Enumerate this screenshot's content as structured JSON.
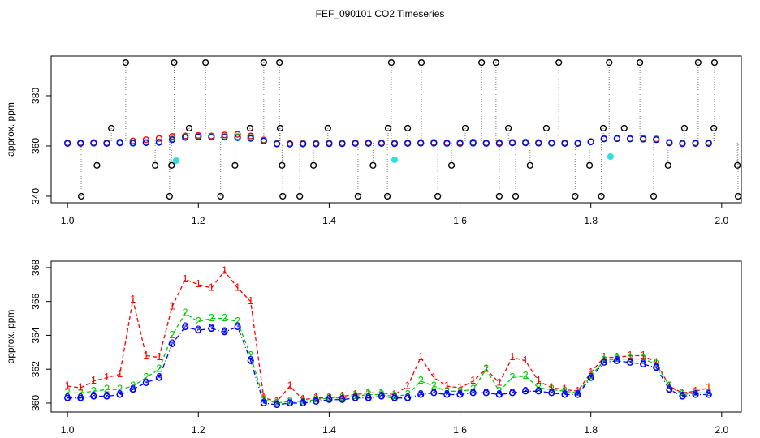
{
  "title": "FEF_090101  CO2 Timeseries",
  "chart_data": [
    {
      "type": "scatter",
      "ylabel": "approx. ppm",
      "xlim": [
        0.975,
        2.03
      ],
      "ylim": [
        337.4,
        395.8
      ],
      "xticks": [
        {
          "value": 1.0,
          "label": "1.0"
        },
        {
          "value": 1.2,
          "label": "1.2"
        },
        {
          "value": 1.4,
          "label": "1.4"
        },
        {
          "value": 1.6,
          "label": "1.6"
        },
        {
          "value": 1.8,
          "label": "1.8"
        },
        {
          "value": 2.0,
          "label": "2.0"
        }
      ],
      "yticks": [
        340,
        360,
        380
      ],
      "x": [
        1.0,
        1.02,
        1.04,
        1.06,
        1.08,
        1.1,
        1.12,
        1.14,
        1.16,
        1.18,
        1.2,
        1.22,
        1.24,
        1.26,
        1.28,
        1.3,
        1.32,
        1.34,
        1.36,
        1.38,
        1.4,
        1.42,
        1.44,
        1.46,
        1.48,
        1.5,
        1.52,
        1.54,
        1.56,
        1.58,
        1.6,
        1.62,
        1.64,
        1.66,
        1.68,
        1.7,
        1.72,
        1.74,
        1.76,
        1.78,
        1.8,
        1.82,
        1.84,
        1.86,
        1.88,
        1.9,
        1.92,
        1.94,
        1.96,
        1.98
      ],
      "series": [
        {
          "color": "#000000",
          "drop_lines": true,
          "x": [
            1.021,
            1.045,
            1.067,
            1.089,
            1.134,
            1.156,
            1.159,
            1.163,
            1.186,
            1.211,
            1.234,
            1.256,
            1.279,
            1.3,
            1.324,
            1.325,
            1.328,
            1.329,
            1.355,
            1.376,
            1.398,
            1.444,
            1.467,
            1.489,
            1.49,
            1.495,
            1.52,
            1.541,
            1.566,
            1.587,
            1.608,
            1.633,
            1.655,
            1.66,
            1.674,
            1.685,
            1.707,
            1.732,
            1.751,
            1.776,
            1.798,
            1.816,
            1.819,
            1.828,
            1.851,
            1.875,
            1.896,
            1.918,
            1.943,
            1.964,
            1.988,
            1.989,
            2.024,
            2.025
          ],
          "values": [
            340,
            352.3,
            367.1,
            393.2,
            352.3,
            340,
            352.3,
            393.2,
            367.1,
            393.2,
            340,
            352.3,
            367.1,
            393.2,
            393.2,
            367.1,
            352.3,
            340,
            340,
            352.3,
            367.1,
            340,
            352.3,
            340,
            367.1,
            393.2,
            367.1,
            393.2,
            340,
            352.3,
            367.1,
            393.2,
            393.2,
            340,
            367.1,
            340,
            352.3,
            367.1,
            393.2,
            340,
            352.3,
            340,
            367.1,
            393.2,
            367.1,
            393.2,
            340,
            352.3,
            367.1,
            393.2,
            367.1,
            393.2,
            352.3,
            340
          ]
        },
        {
          "color": "#ff0000",
          "values": [
            361.3,
            361.3,
            361.4,
            361.3,
            361.6,
            362.0,
            362.5,
            363.0,
            363.8,
            364.0,
            364.2,
            364.0,
            364.4,
            364.6,
            364.0,
            362.4,
            361.0,
            361.0,
            361.1,
            361.1,
            361.2,
            361.2,
            361.3,
            361.3,
            361.3,
            361.2,
            361.3,
            361.4,
            361.5,
            361.3,
            361.4,
            361.6,
            361.3,
            361.4,
            361.5,
            361.6,
            361.4,
            361.3,
            361.3,
            361.2,
            361.8,
            363.0,
            363.1,
            363.0,
            363.0,
            362.8,
            361.5,
            361.2,
            361.3,
            361.3
          ]
        },
        {
          "color": "#00cc00",
          "values": [
            361.1,
            361.1,
            361.2,
            361.1,
            361.3,
            361.3,
            361.5,
            361.6,
            362.8,
            363.6,
            363.8,
            363.7,
            363.8,
            363.7,
            363.4,
            362.2,
            360.9,
            360.8,
            360.9,
            360.9,
            361.0,
            361.0,
            361.1,
            361.1,
            361.1,
            361.0,
            361.1,
            361.2,
            361.2,
            361.1,
            361.1,
            361.3,
            361.1,
            361.1,
            361.3,
            361.3,
            361.2,
            361.2,
            361.1,
            361.1,
            361.7,
            362.9,
            363.0,
            362.9,
            362.8,
            362.6,
            361.3,
            361.0,
            361.1,
            361.1
          ]
        },
        {
          "color": "#0000ff",
          "values": [
            361.0,
            361.0,
            361.1,
            361.0,
            361.2,
            361.1,
            361.3,
            361.4,
            362.5,
            363.4,
            363.6,
            363.5,
            363.5,
            363.3,
            363.0,
            362.0,
            360.8,
            360.7,
            360.8,
            360.8,
            360.9,
            360.9,
            361.0,
            361.0,
            361.0,
            360.9,
            361.0,
            361.1,
            361.1,
            361.0,
            361.0,
            361.1,
            361.0,
            361.0,
            361.2,
            361.2,
            361.1,
            361.1,
            361.0,
            361.0,
            361.6,
            362.8,
            362.9,
            362.8,
            362.7,
            362.5,
            361.2,
            360.9,
            361.0,
            361.0
          ]
        },
        {
          "color": "#33dddd",
          "filled": true,
          "x": [
            1.166,
            1.5,
            1.83
          ],
          "values": [
            354.2,
            354.5,
            355.8
          ]
        }
      ]
    },
    {
      "type": "line",
      "ylabel": "approx. ppm",
      "xlim": [
        0.975,
        2.03
      ],
      "ylim": [
        359.47,
        368.38
      ],
      "xticks": [
        {
          "value": 1.0,
          "label": "1.0"
        },
        {
          "value": 1.2,
          "label": "1.2"
        },
        {
          "value": 1.4,
          "label": "1.4"
        },
        {
          "value": 1.6,
          "label": "1.6"
        },
        {
          "value": 1.8,
          "label": "1.8"
        },
        {
          "value": 2.0,
          "label": "2.0"
        }
      ],
      "yticks": [
        360,
        362,
        364,
        366,
        368
      ],
      "x": [
        1.0,
        1.02,
        1.04,
        1.06,
        1.08,
        1.1,
        1.12,
        1.14,
        1.16,
        1.18,
        1.2,
        1.22,
        1.24,
        1.26,
        1.28,
        1.3,
        1.32,
        1.34,
        1.36,
        1.38,
        1.4,
        1.42,
        1.44,
        1.46,
        1.48,
        1.5,
        1.52,
        1.54,
        1.56,
        1.58,
        1.6,
        1.62,
        1.64,
        1.66,
        1.68,
        1.7,
        1.72,
        1.74,
        1.76,
        1.78,
        1.8,
        1.82,
        1.84,
        1.86,
        1.88,
        1.9,
        1.92,
        1.94,
        1.96,
        1.98
      ],
      "series": [
        {
          "name": "1",
          "color": "#ff0000",
          "linestyle": "dashed",
          "values": [
            361.0,
            360.9,
            361.3,
            361.5,
            361.7,
            366.1,
            362.8,
            362.7,
            365.7,
            367.3,
            367.0,
            366.8,
            367.8,
            366.8,
            366.0,
            360.3,
            360.1,
            361.0,
            360.2,
            360.3,
            360.3,
            360.4,
            360.5,
            360.6,
            360.6,
            360.5,
            361.0,
            362.7,
            361.5,
            361.0,
            360.9,
            361.3,
            362.0,
            361.2,
            362.7,
            362.5,
            361.3,
            360.9,
            360.8,
            360.7,
            361.8,
            362.7,
            362.7,
            362.8,
            362.8,
            362.4,
            361.0,
            360.6,
            360.7,
            360.9
          ]
        },
        {
          "name": "2",
          "color": "#00cc00",
          "linestyle": "dashed",
          "values": [
            360.6,
            360.6,
            360.7,
            360.8,
            360.8,
            361.0,
            361.5,
            362.0,
            364.0,
            365.3,
            364.8,
            365.0,
            365.0,
            364.8,
            362.8,
            360.2,
            360.0,
            360.1,
            360.1,
            360.2,
            360.3,
            360.3,
            360.4,
            360.5,
            360.5,
            360.4,
            360.5,
            361.3,
            361.0,
            360.7,
            360.7,
            360.8,
            362.0,
            360.7,
            361.5,
            361.6,
            360.9,
            360.8,
            360.7,
            360.6,
            361.6,
            362.5,
            362.6,
            362.6,
            362.6,
            362.3,
            361.0,
            360.5,
            360.6,
            360.6
          ]
        },
        {
          "name": "3",
          "color": "#0000ff",
          "linestyle": "dashdot",
          "circles": true,
          "values": [
            360.3,
            360.3,
            360.4,
            360.4,
            360.5,
            360.8,
            361.2,
            361.5,
            363.5,
            364.5,
            364.3,
            364.4,
            364.2,
            364.5,
            362.5,
            360.0,
            359.9,
            360.0,
            360.0,
            360.1,
            360.2,
            360.2,
            360.3,
            360.3,
            360.4,
            360.3,
            360.3,
            360.5,
            360.6,
            360.5,
            360.5,
            360.6,
            360.6,
            360.5,
            360.6,
            360.7,
            360.7,
            360.6,
            360.5,
            360.5,
            361.5,
            362.4,
            362.5,
            362.4,
            362.3,
            362.1,
            360.8,
            360.4,
            360.5,
            360.5
          ]
        }
      ]
    }
  ]
}
